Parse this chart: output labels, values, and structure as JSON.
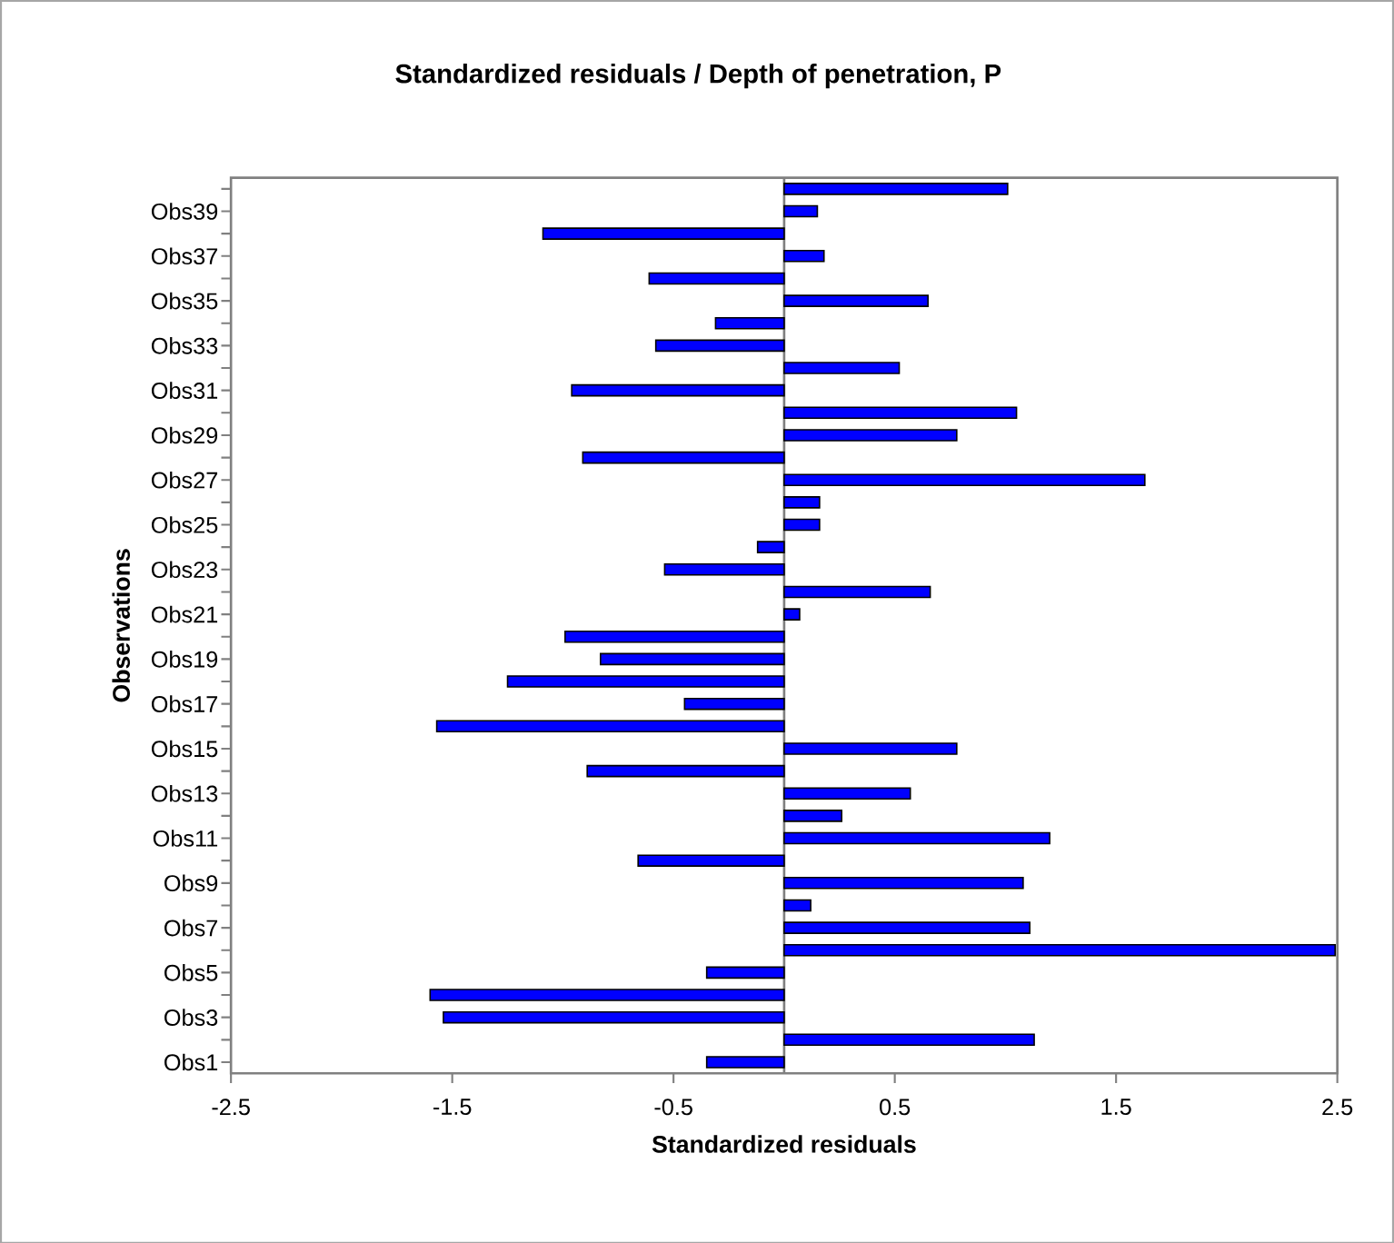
{
  "chart_data": {
    "type": "bar",
    "orientation": "horizontal",
    "title": "Standardized residuals / Depth of penetration, P",
    "xlabel": "Standardized residuals",
    "ylabel": "Observations",
    "categories": [
      null,
      "Obs39",
      null,
      "Obs37",
      null,
      "Obs35",
      null,
      "Obs33",
      null,
      "Obs31",
      null,
      "Obs29",
      null,
      "Obs27",
      null,
      "Obs25",
      null,
      "Obs23",
      null,
      "Obs21",
      null,
      "Obs19",
      null,
      "Obs17",
      null,
      "Obs15",
      null,
      "Obs13",
      null,
      "Obs11",
      null,
      "Obs9",
      null,
      "Obs7",
      null,
      "Obs5",
      null,
      "Obs3",
      null,
      "Obs1"
    ],
    "values": [
      1.01,
      0.15,
      -1.09,
      0.18,
      -0.61,
      0.65,
      -0.31,
      -0.58,
      0.52,
      -0.96,
      1.05,
      0.78,
      -0.91,
      1.63,
      0.16,
      0.16,
      -0.12,
      -0.54,
      0.66,
      0.07,
      -0.99,
      -0.83,
      -1.25,
      -0.45,
      -1.57,
      0.78,
      -0.89,
      0.57,
      0.26,
      1.2,
      -0.66,
      1.08,
      0.12,
      1.11,
      2.49,
      -0.35,
      -1.6,
      -1.54,
      1.13,
      -0.35
    ],
    "color": "#0000ff",
    "xlim": [
      -2.5,
      2.5
    ],
    "xticks": [
      -2.5,
      -1.5,
      -0.5,
      0.5,
      1.5,
      2.5
    ]
  }
}
